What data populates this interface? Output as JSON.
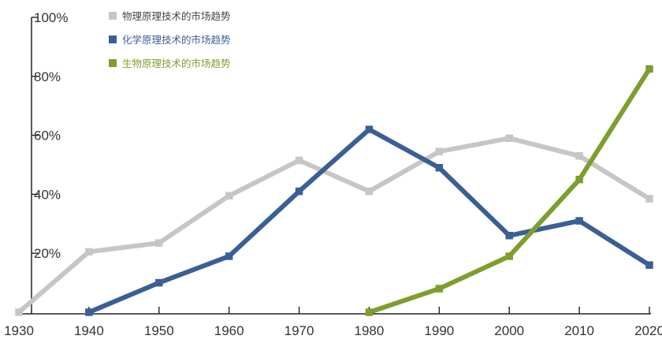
{
  "chart_data": {
    "type": "line",
    "title": "",
    "xlabel": "",
    "ylabel": "",
    "x": [
      1930,
      1940,
      1950,
      1960,
      1970,
      1980,
      1990,
      2000,
      2010,
      2020
    ],
    "x_tick_labels": [
      "1930",
      "1940",
      "1950",
      "1960",
      "1970",
      "1980",
      "1990",
      "2000",
      "2010",
      "2020"
    ],
    "ylim": [
      0,
      100
    ],
    "y_ticks": [
      20,
      40,
      60,
      80,
      100
    ],
    "y_tick_labels": [
      "20%",
      "40%",
      "60%",
      "80%",
      "100%"
    ],
    "grid": false,
    "legend_position": "top-left",
    "series": [
      {
        "name": "物理原理技术的市场趋势",
        "color": "#c9c5c5",
        "x": [
          1930,
          1940,
          1950,
          1960,
          1970,
          1980,
          1990,
          2000,
          2010,
          2020
        ],
        "values": [
          0,
          20.5,
          23.5,
          39.5,
          51.5,
          41,
          54.5,
          59,
          53,
          38.5
        ]
      },
      {
        "name": "化学原理技术的市场趋势",
        "color": "#3a5f96",
        "x": [
          1940,
          1950,
          1960,
          1970,
          1980,
          1990,
          2000,
          2010,
          2020
        ],
        "values": [
          0,
          10,
          19,
          41,
          62,
          49,
          26,
          31,
          16
        ]
      },
      {
        "name": "生物原理技术的市场趋势",
        "color": "#7e9e2e",
        "x": [
          1980,
          1990,
          2000,
          2010,
          2020
        ],
        "values": [
          0,
          8,
          19,
          45,
          82.5
        ]
      }
    ]
  }
}
